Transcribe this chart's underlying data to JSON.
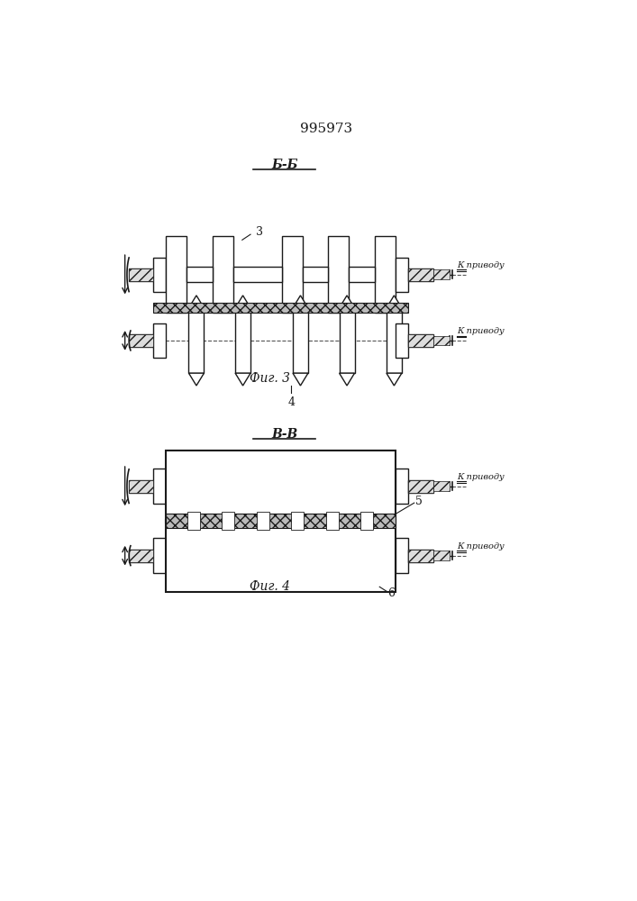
{
  "title": "995973",
  "fig3_label": "Б-Б",
  "fig3_caption": "Фиг. 3",
  "fig4_label": "В-В",
  "fig4_caption": "Фиг. 4",
  "label3": "3",
  "label4": "4",
  "label5": "5",
  "label6": "6",
  "k_privody": "К приводу",
  "line_color": "#1a1a1a"
}
